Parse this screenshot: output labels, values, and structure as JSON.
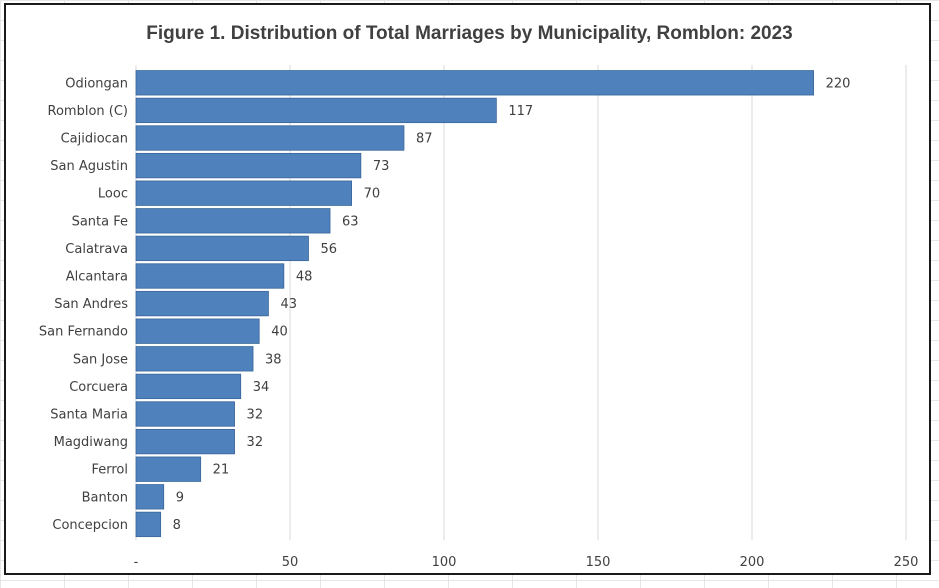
{
  "chart_data": {
    "type": "bar",
    "orientation": "horizontal",
    "title": "Figure 1. Distribution of Total Marriages by Municipality, Romblon: 2023",
    "xlabel": "",
    "ylabel": "",
    "categories": [
      "Odiongan",
      "Romblon (C)",
      "Cajidiocan",
      "San Agustin",
      "Looc",
      "Santa Fe",
      "Calatrava",
      "Alcantara",
      "San Andres",
      "San Fernando",
      "San Jose",
      "Corcuera",
      "Santa Maria",
      "Magdiwang",
      "Ferrol",
      "Banton",
      "Concepcion"
    ],
    "values": [
      220,
      117,
      87,
      73,
      70,
      63,
      56,
      48,
      43,
      40,
      38,
      34,
      32,
      32,
      21,
      9,
      8
    ],
    "xlim": [
      0,
      250
    ],
    "x_ticks": [
      0,
      50,
      100,
      150,
      200,
      250
    ],
    "x_tick_labels": [
      "-",
      "50",
      "100",
      "150",
      "200",
      "250"
    ],
    "grid": true,
    "legend": "none",
    "bar_color": "#4F81BD",
    "bar_edge_color": "#3A6699",
    "data_labels": true
  }
}
